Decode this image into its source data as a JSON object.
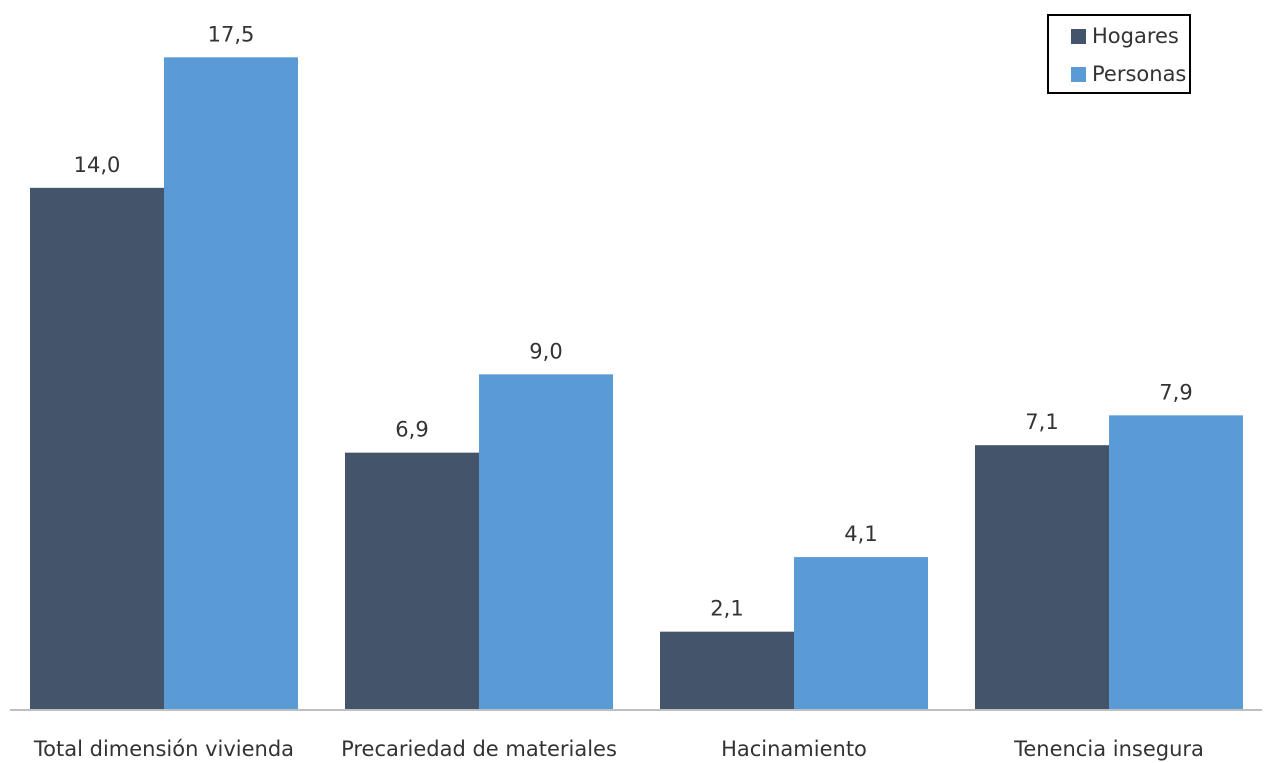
{
  "chart_data": {
    "type": "bar",
    "categories": [
      "Total dimensión vivienda",
      "Precariedad de materiales",
      "Hacinamiento",
      "Tenencia insegura"
    ],
    "series": [
      {
        "name": "Hogares",
        "color": "#44546A",
        "values": [
          14.0,
          6.9,
          2.1,
          7.1
        ],
        "labels": [
          "14,0",
          "6,9",
          "2,1",
          "7,1"
        ]
      },
      {
        "name": "Personas",
        "color": "#5B9BD5",
        "values": [
          17.5,
          9.0,
          4.1,
          7.9
        ],
        "labels": [
          "17,5",
          "9,0",
          "4,1",
          "7,9"
        ]
      }
    ],
    "title": "",
    "xlabel": "",
    "ylabel": "",
    "ylim": [
      0,
      18.5
    ],
    "grid": false,
    "y_axis_visible": false,
    "legend_position": "top-right",
    "text_color": "#333333",
    "axis_color": "#bfbfbf"
  }
}
